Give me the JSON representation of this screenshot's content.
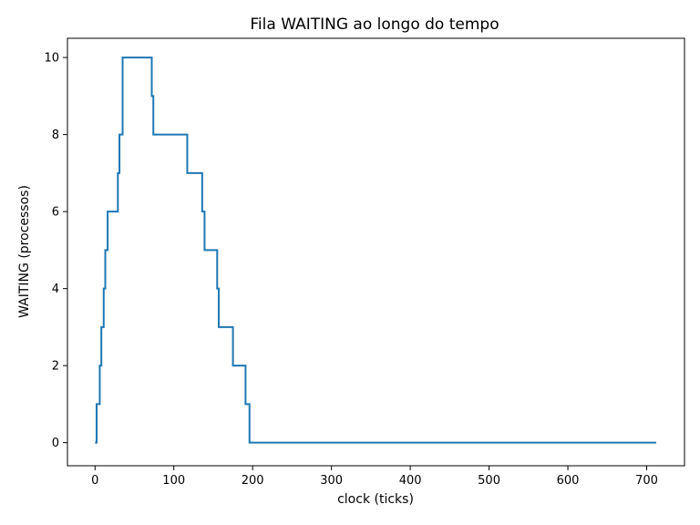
{
  "chart_data": {
    "type": "line",
    "title": "Fila WAITING ao longo do tempo",
    "xlabel": "clock (ticks)",
    "ylabel": "WAITING (processos)",
    "xlim": [
      -35,
      748
    ],
    "ylim": [
      -0.6,
      10.5
    ],
    "xticks": [
      0,
      100,
      200,
      300,
      400,
      500,
      600,
      700
    ],
    "yticks": [
      0,
      2,
      4,
      6,
      8,
      10
    ],
    "grid": false,
    "legend": "none",
    "series": [
      {
        "color": "#1f77b4",
        "step": true,
        "x": [
          0,
          2,
          6,
          8,
          11,
          13,
          16,
          29,
          31,
          35,
          72,
          74,
          117,
          136,
          139,
          155,
          157,
          175,
          191,
          196,
          712
        ],
        "y": [
          0,
          1,
          2,
          3,
          4,
          5,
          6,
          7,
          8,
          10,
          9,
          8,
          7,
          6,
          5,
          4,
          3,
          2,
          1,
          0,
          0
        ]
      }
    ]
  }
}
